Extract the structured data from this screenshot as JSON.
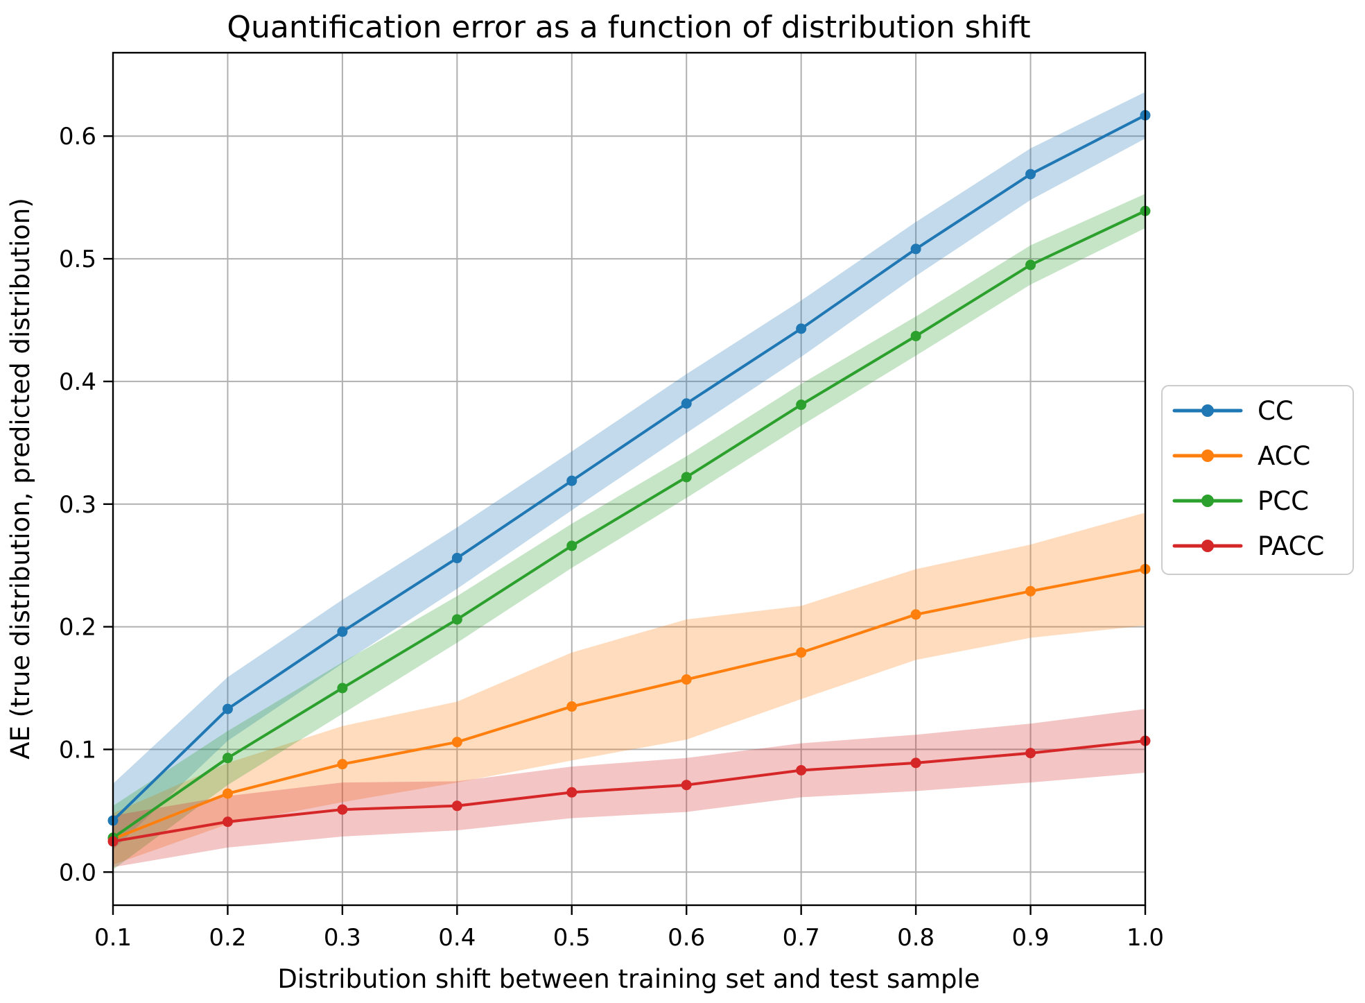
{
  "chart_data": {
    "type": "line",
    "title": "Quantification error as a function of distribution shift",
    "xlabel": "Distribution shift between training set and test sample",
    "ylabel": "AE (true distribution, predicted distribution)",
    "x": [
      0.1,
      0.2,
      0.3,
      0.4,
      0.5,
      0.6,
      0.7,
      0.8,
      0.9,
      1.0
    ],
    "xtick_labels": [
      "0.1",
      "0.2",
      "0.3",
      "0.4",
      "0.5",
      "0.6",
      "0.7",
      "0.8",
      "0.9",
      "1.0"
    ],
    "ytick_values": [
      0.0,
      0.1,
      0.2,
      0.3,
      0.4,
      0.5,
      0.6
    ],
    "ytick_labels": [
      "0.0",
      "0.1",
      "0.2",
      "0.3",
      "0.4",
      "0.5",
      "0.6"
    ],
    "xlim": [
      0.1,
      1.0
    ],
    "ylim": [
      -0.027,
      0.668
    ],
    "grid": true,
    "grid_color": "#b0b0b0",
    "legend_position": "outside-right",
    "band_alpha": 0.27,
    "series": [
      {
        "name": "CC",
        "color": "#1f77b4",
        "values": [
          0.042,
          0.133,
          0.196,
          0.256,
          0.319,
          0.382,
          0.443,
          0.508,
          0.569,
          0.617
        ],
        "band_lower": [
          0.018,
          0.107,
          0.17,
          0.231,
          0.295,
          0.358,
          0.42,
          0.486,
          0.548,
          0.598
        ],
        "band_upper": [
          0.072,
          0.159,
          0.222,
          0.281,
          0.343,
          0.406,
          0.466,
          0.53,
          0.59,
          0.636
        ]
      },
      {
        "name": "ACC",
        "color": "#ff7f0e",
        "values": [
          0.027,
          0.064,
          0.088,
          0.106,
          0.135,
          0.157,
          0.179,
          0.21,
          0.229,
          0.247
        ],
        "band_lower": [
          0.006,
          0.039,
          0.057,
          0.073,
          0.091,
          0.108,
          0.141,
          0.173,
          0.191,
          0.201
        ],
        "band_upper": [
          0.048,
          0.089,
          0.119,
          0.139,
          0.179,
          0.206,
          0.217,
          0.247,
          0.267,
          0.293
        ]
      },
      {
        "name": "PCC",
        "color": "#2ca02c",
        "values": [
          0.028,
          0.093,
          0.15,
          0.206,
          0.266,
          0.322,
          0.381,
          0.437,
          0.495,
          0.539
        ],
        "band_lower": [
          0.002,
          0.071,
          0.129,
          0.187,
          0.248,
          0.305,
          0.364,
          0.421,
          0.479,
          0.525
        ],
        "band_upper": [
          0.054,
          0.115,
          0.171,
          0.225,
          0.284,
          0.339,
          0.398,
          0.453,
          0.511,
          0.553
        ]
      },
      {
        "name": "PACC",
        "color": "#d62728",
        "values": [
          0.025,
          0.041,
          0.051,
          0.054,
          0.065,
          0.071,
          0.083,
          0.089,
          0.097,
          0.107
        ],
        "band_lower": [
          0.004,
          0.02,
          0.029,
          0.034,
          0.044,
          0.049,
          0.061,
          0.066,
          0.073,
          0.081
        ],
        "band_upper": [
          0.046,
          0.062,
          0.073,
          0.074,
          0.086,
          0.093,
          0.105,
          0.112,
          0.121,
          0.133
        ]
      }
    ]
  }
}
